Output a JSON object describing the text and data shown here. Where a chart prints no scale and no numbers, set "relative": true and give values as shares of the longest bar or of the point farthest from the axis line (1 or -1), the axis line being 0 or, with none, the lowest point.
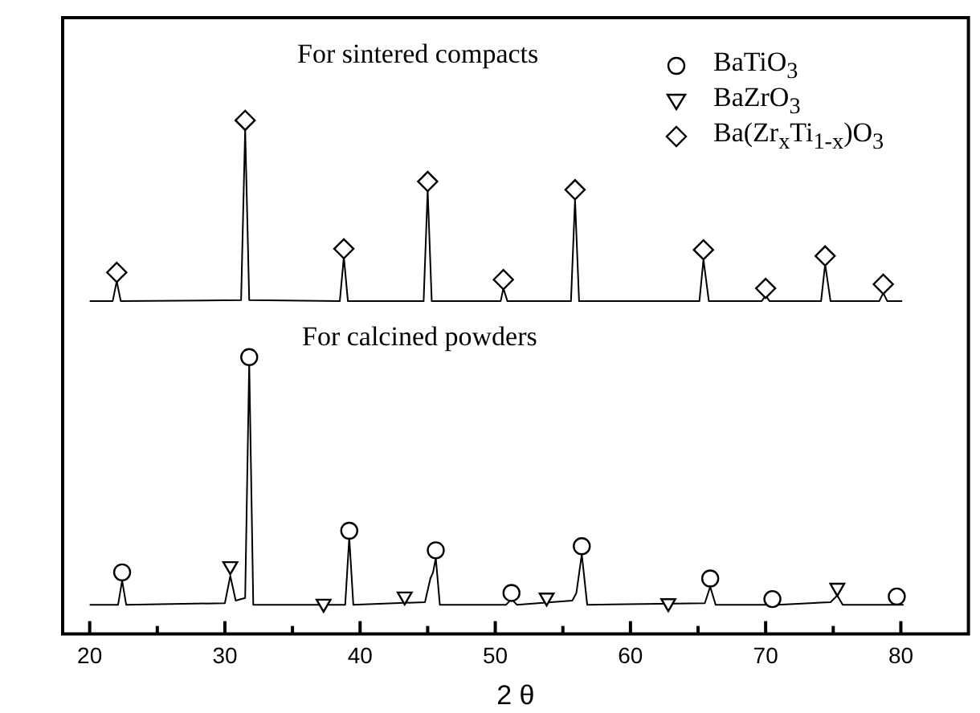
{
  "chart_data": {
    "type": "line",
    "xlabel": "2 θ",
    "relative": true,
    "xlim": [
      18,
      85
    ],
    "xticks": [
      20,
      {
        "value": 25,
        "label": null
      },
      30,
      {
        "value": 35,
        "label": null
      },
      40,
      {
        "value": 45,
        "label": null
      },
      50,
      {
        "value": 55,
        "label": null
      },
      60,
      {
        "value": 65,
        "label": null
      },
      70,
      {
        "value": 75,
        "label": null
      },
      80
    ],
    "legend": "top right",
    "annotations": [
      "For sintered compacts",
      "For calcined powders"
    ],
    "series": [
      {
        "color": "#000000",
        "marker": "none",
        "x": [
          20,
          21.7,
          22.0,
          22.3,
          31.2,
          31.5,
          31.8,
          38.5,
          38.8,
          39.1,
          44.7,
          45.0,
          45.3,
          50.4,
          50.6,
          50.9,
          55.6,
          55.9,
          56.2,
          65.1,
          65.4,
          65.8,
          69.7,
          70.0,
          70.3,
          74.1,
          74.4,
          74.8,
          78.4,
          78.7,
          79.0,
          80.1
        ],
        "values": [
          0.648,
          0.648,
          0.687,
          0.648,
          0.65,
          0.984,
          0.65,
          0.648,
          0.734,
          0.648,
          0.648,
          0.865,
          0.648,
          0.648,
          0.673,
          0.648,
          0.648,
          0.846,
          0.648,
          0.648,
          0.729,
          0.648,
          0.648,
          0.659,
          0.648,
          0.648,
          0.72,
          0.648,
          0.648,
          0.664,
          0.648,
          0.648
        ]
      },
      {
        "color": "#000000",
        "marker": "none",
        "x": [
          20,
          22.1,
          22.4,
          22.7,
          30.0,
          30.4,
          30.8,
          31.5,
          31.8,
          32.1,
          38.9,
          39.2,
          39.5,
          44.8,
          45.2,
          45.4,
          45.6,
          45.9,
          50.8,
          51.2,
          51.6,
          55.7,
          56.0,
          56.4,
          56.8,
          65.5,
          65.9,
          66.3,
          70.2,
          70.5,
          70.9,
          74.8,
          75.3,
          75.7,
          80.2
        ],
        "values": [
          0.057,
          0.057,
          0.104,
          0.057,
          0.06,
          0.113,
          0.065,
          0.07,
          0.529,
          0.057,
          0.057,
          0.188,
          0.057,
          0.062,
          0.108,
          0.12,
          0.148,
          0.057,
          0.057,
          0.068,
          0.057,
          0.065,
          0.08,
          0.155,
          0.057,
          0.06,
          0.092,
          0.057,
          0.057,
          0.063,
          0.057,
          0.062,
          0.075,
          0.057,
          0.057
        ]
      },
      {
        "type": "scatter",
        "name": "BaTiO$_{3}$",
        "color": "#000000",
        "marker": "circle",
        "x": [
          22.4,
          31.8,
          39.2,
          45.6,
          51.2,
          56.4,
          65.9,
          70.5,
          79.7
        ],
        "values": [
          0.12,
          0.539,
          0.201,
          0.163,
          0.08,
          0.171,
          0.108,
          0.068,
          0.073
        ]
      },
      {
        "type": "scatter",
        "name": "BaZrO$_{3}$",
        "color": "#000000",
        "marker": "triangle",
        "x": [
          30.4,
          37.3,
          43.3,
          53.8,
          62.8,
          75.3
        ],
        "values": [
          0.132,
          0.059,
          0.073,
          0.071,
          0.06,
          0.09
        ]
      },
      {
        "type": "scatter",
        "name": "Ba(Zr$_{x}$Ti$_{1-x}$)O$_{3}$",
        "color": "#000000",
        "marker": "diamond",
        "x": [
          22.0,
          31.5,
          38.8,
          45.0,
          50.6,
          55.9,
          65.4,
          70.0,
          74.4,
          78.7
        ],
        "values": [
          0.704,
          1.0,
          0.75,
          0.881,
          0.69,
          0.865,
          0.748,
          0.673,
          0.736,
          0.681
        ]
      }
    ]
  }
}
